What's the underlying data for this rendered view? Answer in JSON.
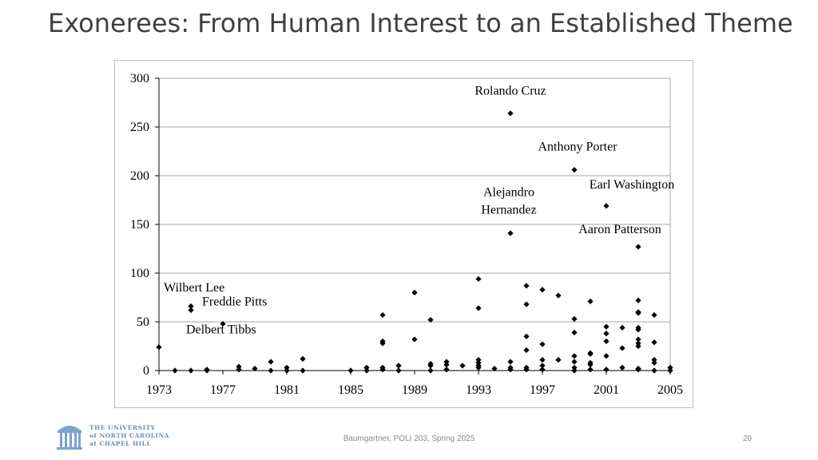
{
  "slide": {
    "title": "Exonerees: From Human Interest to an Established Theme",
    "footer": "Baumgartner, POLI 203, Spring 2025",
    "page_number": "20",
    "logo_lines": [
      "THE UNIVERSITY",
      "of NORTH CAROLINA",
      "at CHAPEL HILL"
    ]
  },
  "chart_data": {
    "type": "scatter",
    "xlim": [
      1973,
      2005
    ],
    "ylim": [
      0,
      300
    ],
    "x_ticks": [
      "1973",
      "1977",
      "1981",
      "1985",
      "1989",
      "1993",
      "1997",
      "2001",
      "2005"
    ],
    "y_ticks": [
      "0",
      "50",
      "100",
      "150",
      "200",
      "250",
      "300"
    ],
    "grid": true,
    "marker_color": "#000000",
    "points": [
      [
        1973,
        24
      ],
      [
        1974,
        0
      ],
      [
        1975,
        66
      ],
      [
        1975,
        62
      ],
      [
        1975,
        0
      ],
      [
        1976,
        0
      ],
      [
        1976,
        1
      ],
      [
        1977,
        48
      ],
      [
        1978,
        4
      ],
      [
        1978,
        1
      ],
      [
        1979,
        2
      ],
      [
        1980,
        9
      ],
      [
        1980,
        0
      ],
      [
        1981,
        3
      ],
      [
        1981,
        0
      ],
      [
        1982,
        12
      ],
      [
        1982,
        0
      ],
      [
        1985,
        0
      ],
      [
        1986,
        3
      ],
      [
        1986,
        0
      ],
      [
        1987,
        57
      ],
      [
        1987,
        30
      ],
      [
        1987,
        28
      ],
      [
        1987,
        3
      ],
      [
        1987,
        1
      ],
      [
        1988,
        5
      ],
      [
        1988,
        0
      ],
      [
        1989,
        80
      ],
      [
        1989,
        32
      ],
      [
        1990,
        52
      ],
      [
        1990,
        7
      ],
      [
        1990,
        5
      ],
      [
        1990,
        0
      ],
      [
        1991,
        9
      ],
      [
        1991,
        6
      ],
      [
        1991,
        1
      ],
      [
        1992,
        5
      ],
      [
        1993,
        94
      ],
      [
        1993,
        64
      ],
      [
        1993,
        11
      ],
      [
        1993,
        8
      ],
      [
        1993,
        5
      ],
      [
        1993,
        3
      ],
      [
        1994,
        2
      ],
      [
        1995,
        264
      ],
      [
        1995,
        141
      ],
      [
        1995,
        9
      ],
      [
        1995,
        3
      ],
      [
        1995,
        1
      ],
      [
        1996,
        87
      ],
      [
        1996,
        68
      ],
      [
        1996,
        35
      ],
      [
        1996,
        21
      ],
      [
        1996,
        3
      ],
      [
        1996,
        1
      ],
      [
        1997,
        83
      ],
      [
        1997,
        27
      ],
      [
        1997,
        11
      ],
      [
        1997,
        5
      ],
      [
        1997,
        1
      ],
      [
        1998,
        77
      ],
      [
        1998,
        11
      ],
      [
        1999,
        206
      ],
      [
        1999,
        53
      ],
      [
        1999,
        39
      ],
      [
        1999,
        15
      ],
      [
        1999,
        9
      ],
      [
        1999,
        3
      ],
      [
        1999,
        0
      ],
      [
        2000,
        71
      ],
      [
        2000,
        18
      ],
      [
        2000,
        17
      ],
      [
        2000,
        8
      ],
      [
        2000,
        6
      ],
      [
        2000,
        1
      ],
      [
        2001,
        169
      ],
      [
        2001,
        45
      ],
      [
        2001,
        38
      ],
      [
        2001,
        30
      ],
      [
        2001,
        15
      ],
      [
        2001,
        1
      ],
      [
        2002,
        44
      ],
      [
        2002,
        23
      ],
      [
        2002,
        3
      ],
      [
        2003,
        127
      ],
      [
        2003,
        72
      ],
      [
        2003,
        60
      ],
      [
        2003,
        59
      ],
      [
        2003,
        44
      ],
      [
        2003,
        42
      ],
      [
        2003,
        32
      ],
      [
        2003,
        28
      ],
      [
        2003,
        25
      ],
      [
        2003,
        2
      ],
      [
        2003,
        1
      ],
      [
        2004,
        57
      ],
      [
        2004,
        29
      ],
      [
        2004,
        11
      ],
      [
        2004,
        8
      ],
      [
        2004,
        0
      ],
      [
        2005,
        3
      ],
      [
        2005,
        0
      ]
    ],
    "annotations": [
      {
        "lines": [
          "Rolando Cruz"
        ],
        "x": 1995,
        "y": 283,
        "anchor": "middle"
      },
      {
        "lines": [
          "Anthony Porter"
        ],
        "x": 1999.2,
        "y": 226,
        "anchor": "middle"
      },
      {
        "lines": [
          "Earl Washington"
        ],
        "x": 2002.6,
        "y": 187,
        "anchor": "middle"
      },
      {
        "lines": [
          "Alejandro",
          "Hernandez"
        ],
        "x": 1994.9,
        "y": 179,
        "anchor": "middle"
      },
      {
        "lines": [
          "Aaron Patterson"
        ],
        "x": 2001.85,
        "y": 141,
        "anchor": "middle"
      },
      {
        "lines": [
          "Wilbert Lee"
        ],
        "x": 1973.3,
        "y": 81,
        "anchor": "start"
      },
      {
        "lines": [
          "Freddie Pitts"
        ],
        "x": 1975.7,
        "y": 67,
        "anchor": "start"
      },
      {
        "lines": [
          "Delbert Tibbs"
        ],
        "x": 1974.7,
        "y": 38,
        "anchor": "start"
      }
    ]
  }
}
